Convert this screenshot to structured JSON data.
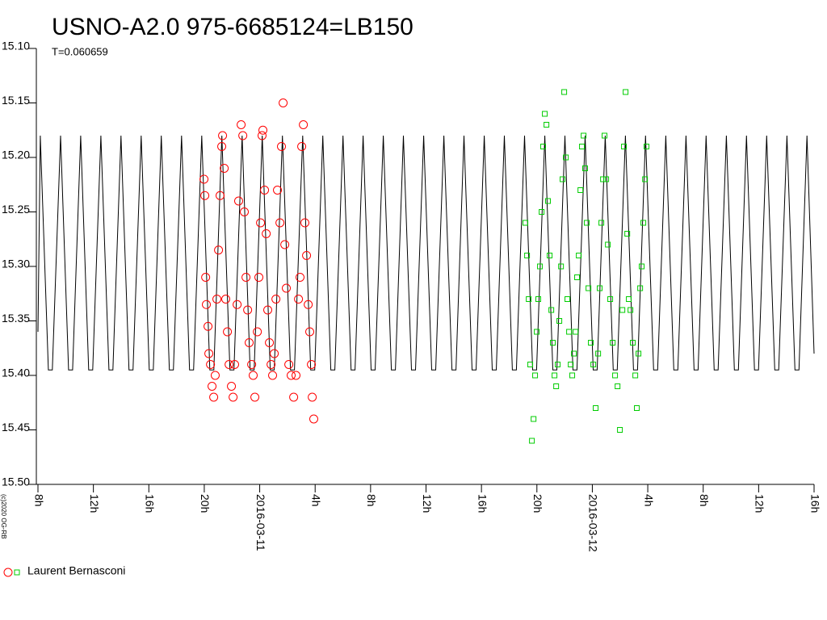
{
  "chart_data": {
    "type": "scatter",
    "title": "USNO-A2.0 975-6685124=LB150",
    "subtitle": "T=0.060659",
    "copyright": "(c)2020 OG-RB",
    "legend_label": "Laurent Bernasconi",
    "ylim": [
      15.5,
      15.1
    ],
    "yticks": [
      {
        "value": 15.1,
        "label": "15.10"
      },
      {
        "value": 15.15,
        "label": "15.15"
      },
      {
        "value": 15.2,
        "label": "15.20"
      },
      {
        "value": 15.25,
        "label": "15.25"
      },
      {
        "value": 15.3,
        "label": "15.30"
      },
      {
        "value": 15.35,
        "label": "15.35"
      },
      {
        "value": 15.4,
        "label": "15.40"
      },
      {
        "value": 15.45,
        "label": "15.45"
      },
      {
        "value": 15.5,
        "label": "15.50"
      }
    ],
    "xlim": [
      -16,
      40
    ],
    "xticks": [
      {
        "value": -16,
        "label": "8h"
      },
      {
        "value": -12,
        "label": "12h"
      },
      {
        "value": -8,
        "label": "16h"
      },
      {
        "value": -4,
        "label": "20h"
      },
      {
        "value": 0,
        "label": "2016-03-11"
      },
      {
        "value": 4,
        "label": "4h"
      },
      {
        "value": 8,
        "label": "8h"
      },
      {
        "value": 12,
        "label": "12h"
      },
      {
        "value": 16,
        "label": "16h"
      },
      {
        "value": 20,
        "label": "20h"
      },
      {
        "value": 24,
        "label": "2016-03-12"
      },
      {
        "value": 28,
        "label": "4h"
      },
      {
        "value": 32,
        "label": "8h"
      },
      {
        "value": 36,
        "label": "12h"
      },
      {
        "value": 40,
        "label": "16h"
      }
    ],
    "model": {
      "color": "#000000",
      "x": [
        -16,
        -15.83,
        -15.25,
        -14.96,
        -14.37,
        -13.79,
        -13.5,
        -12.92,
        -12.34,
        -12.05,
        -11.46,
        -10.88,
        -10.59,
        -10.01,
        -9.43,
        -9.14,
        -8.55,
        -7.97,
        -7.68,
        -7.1,
        -6.52,
        -6.23,
        -5.64,
        -5.06,
        -4.77,
        -4.18,
        -3.6,
        -3.31,
        -2.73,
        -2.15,
        -1.86,
        -1.27,
        -0.69,
        -0.4,
        0.18,
        0.76,
        1.05,
        1.64,
        2.22,
        2.51,
        3.1,
        3.68,
        3.97,
        4.55,
        5.13,
        5.42,
        6.01,
        6.59,
        6.88,
        7.46,
        8.04,
        8.33,
        8.92,
        9.5,
        9.79,
        10.37,
        10.95,
        11.24,
        11.83,
        12.41,
        12.7,
        13.29,
        13.87,
        14.16,
        14.74,
        15.32,
        15.61,
        16.2,
        16.78,
        17.07,
        17.65,
        18.23,
        18.52,
        19.11,
        19.69,
        19.98,
        20.57,
        21.15,
        21.44,
        22.02,
        22.6,
        22.89,
        23.48,
        24.06,
        24.35,
        24.93,
        25.51,
        25.8,
        26.39,
        26.97,
        27.26,
        27.84,
        28.42,
        28.71,
        29.3,
        29.88,
        30.17,
        30.76,
        31.34,
        31.63,
        32.21,
        32.79,
        33.08,
        33.67,
        34.25,
        34.54,
        35.12,
        35.7,
        35.99,
        36.58,
        37.16,
        37.45,
        38.04,
        38.62,
        38.91,
        39.49,
        40
      ],
      "values": [
        15.36,
        15.18,
        15.395,
        15.395,
        15.18,
        15.395,
        15.395,
        15.18,
        15.395,
        15.395,
        15.18,
        15.395,
        15.395,
        15.18,
        15.395,
        15.395,
        15.18,
        15.395,
        15.395,
        15.18,
        15.395,
        15.395,
        15.18,
        15.395,
        15.395,
        15.18,
        15.395,
        15.395,
        15.18,
        15.395,
        15.395,
        15.18,
        15.395,
        15.395,
        15.18,
        15.395,
        15.395,
        15.18,
        15.395,
        15.395,
        15.18,
        15.395,
        15.395,
        15.18,
        15.395,
        15.395,
        15.18,
        15.395,
        15.395,
        15.18,
        15.395,
        15.395,
        15.18,
        15.395,
        15.395,
        15.18,
        15.395,
        15.395,
        15.18,
        15.395,
        15.395,
        15.18,
        15.395,
        15.395,
        15.18,
        15.395,
        15.395,
        15.18,
        15.395,
        15.395,
        15.18,
        15.395,
        15.395,
        15.18,
        15.395,
        15.395,
        15.18,
        15.395,
        15.395,
        15.18,
        15.395,
        15.395,
        15.18,
        15.395,
        15.395,
        15.18,
        15.395,
        15.395,
        15.18,
        15.395,
        15.395,
        15.18,
        15.395,
        15.395,
        15.18,
        15.395,
        15.395,
        15.18,
        15.395,
        15.395,
        15.18,
        15.395,
        15.395,
        15.18,
        15.395,
        15.395,
        15.18,
        15.395,
        15.395,
        15.18,
        15.395,
        15.395,
        15.18,
        15.395,
        15.395,
        15.18,
        15.38
      ]
    },
    "series": [
      {
        "color": "#ff0000",
        "marker": "circle",
        "x": [
          -4.02,
          -3.96,
          -3.9,
          -3.85,
          -3.73,
          -3.67,
          -3.55,
          -3.44,
          -3.32,
          -3.21,
          -3.09,
          -2.97,
          -2.86,
          -2.74,
          -2.68,
          -2.56,
          -2.45,
          -2.33,
          -2.21,
          -2.04,
          -1.92,
          -1.81,
          -1.63,
          -1.52,
          -1.34,
          -1.22,
          -1.11,
          -0.99,
          -0.87,
          -0.76,
          -0.58,
          -0.47,
          -0.35,
          -0.17,
          -0.06,
          0.06,
          0.17,
          0.23,
          0.35,
          0.47,
          0.58,
          0.7,
          0.82,
          0.93,
          1.05,
          1.17,
          1.28,
          1.46,
          1.57,
          1.69,
          1.81,
          1.92,
          2.1,
          2.27,
          2.45,
          2.62,
          2.8,
          2.91,
          3.03,
          3.15,
          3.26,
          3.38,
          3.5,
          3.61,
          3.73,
          3.79,
          3.9
        ],
        "values": [
          15.22,
          15.235,
          15.31,
          15.335,
          15.355,
          15.38,
          15.39,
          15.41,
          15.42,
          15.4,
          15.33,
          15.285,
          15.235,
          15.19,
          15.18,
          15.21,
          15.33,
          15.36,
          15.39,
          15.41,
          15.42,
          15.39,
          15.335,
          15.24,
          15.17,
          15.18,
          15.25,
          15.31,
          15.34,
          15.37,
          15.39,
          15.4,
          15.42,
          15.36,
          15.31,
          15.26,
          15.18,
          15.175,
          15.23,
          15.27,
          15.34,
          15.37,
          15.39,
          15.4,
          15.38,
          15.33,
          15.23,
          15.26,
          15.19,
          15.15,
          15.28,
          15.32,
          15.39,
          15.4,
          15.42,
          15.4,
          15.33,
          15.31,
          15.19,
          15.17,
          15.26,
          15.29,
          15.335,
          15.36,
          15.39,
          15.42,
          15.44
        ]
      },
      {
        "color": "#00cc00",
        "marker": "square",
        "x": [
          19.17,
          19.29,
          19.41,
          19.52,
          19.64,
          19.76,
          19.87,
          19.99,
          20.1,
          20.22,
          20.34,
          20.45,
          20.57,
          20.69,
          20.8,
          20.92,
          21.04,
          21.15,
          21.27,
          21.39,
          21.5,
          21.62,
          21.74,
          21.85,
          21.97,
          22.09,
          22.2,
          22.32,
          22.44,
          22.55,
          22.67,
          22.79,
          22.9,
          23.02,
          23.14,
          23.25,
          23.37,
          23.48,
          23.6,
          23.72,
          23.89,
          24.07,
          24.24,
          24.42,
          24.53,
          24.65,
          24.77,
          24.88,
          25.0,
          25.12,
          25.29,
          25.47,
          25.64,
          25.82,
          25.99,
          26.17,
          26.28,
          26.4,
          26.52,
          26.63,
          26.75,
          26.92,
          27.1,
          27.21,
          27.33,
          27.45,
          27.56,
          27.68,
          27.8,
          27.91
        ],
        "values": [
          15.26,
          15.29,
          15.33,
          15.39,
          15.46,
          15.44,
          15.4,
          15.36,
          15.33,
          15.3,
          15.25,
          15.19,
          15.16,
          15.17,
          15.24,
          15.29,
          15.34,
          15.37,
          15.4,
          15.41,
          15.39,
          15.35,
          15.3,
          15.22,
          15.14,
          15.2,
          15.33,
          15.36,
          15.39,
          15.4,
          15.38,
          15.36,
          15.31,
          15.29,
          15.23,
          15.19,
          15.18,
          15.21,
          15.26,
          15.32,
          15.37,
          15.39,
          15.43,
          15.38,
          15.32,
          15.26,
          15.22,
          15.18,
          15.22,
          15.28,
          15.33,
          15.37,
          15.4,
          15.41,
          15.45,
          15.34,
          15.19,
          15.14,
          15.27,
          15.33,
          15.34,
          15.37,
          15.4,
          15.43,
          15.38,
          15.32,
          15.3,
          15.26,
          15.22,
          15.19
        ]
      }
    ]
  }
}
